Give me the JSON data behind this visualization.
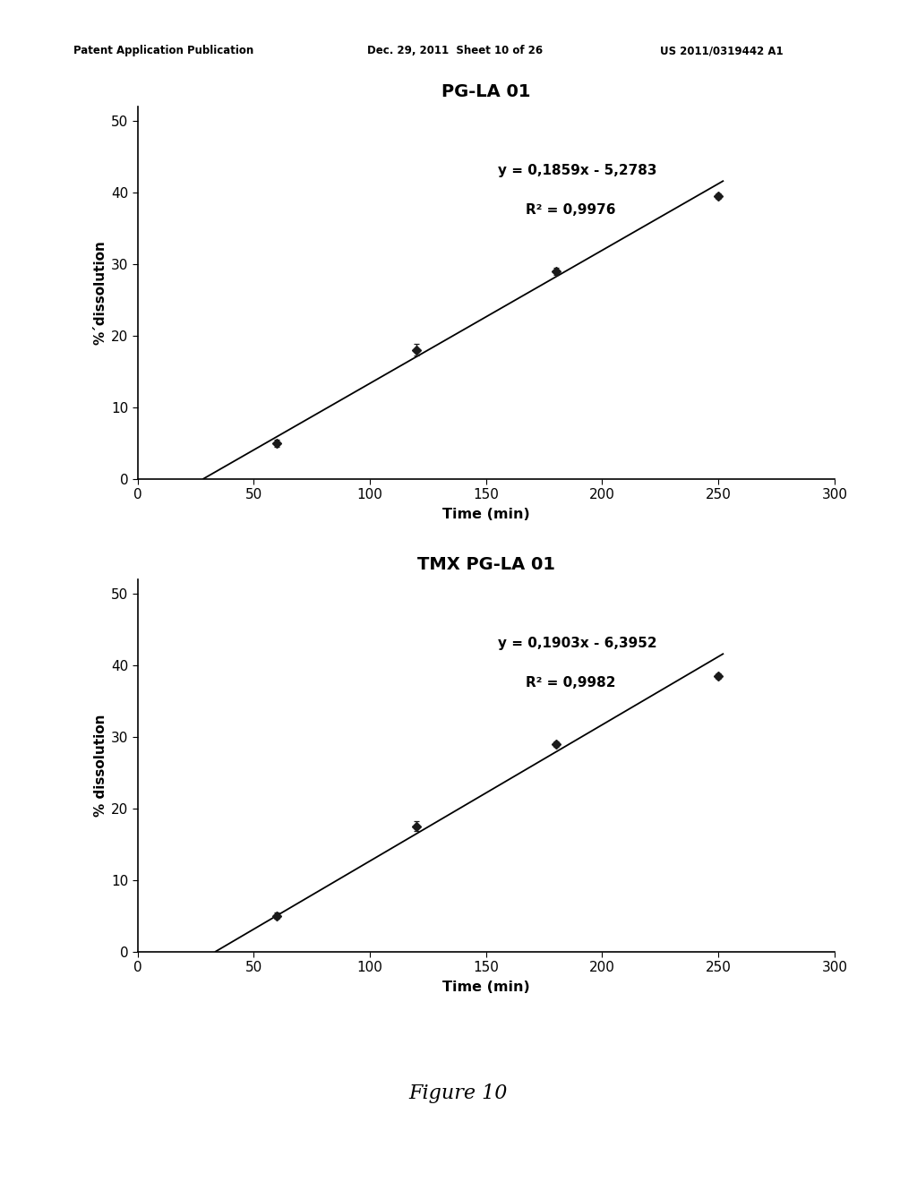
{
  "chart1": {
    "title": "PG-LA 01",
    "equation": "y = 0,1859x - 5,2783",
    "r2": "R² = 0,9976",
    "slope": 0.1859,
    "intercept": -5.2783,
    "data_x": [
      60,
      120,
      180,
      250
    ],
    "data_y": [
      5.0,
      18.0,
      29.0,
      39.5
    ],
    "yerr": [
      0.5,
      0.8,
      0.5,
      0.4
    ],
    "xlabel": "Time (min)",
    "ylabel": "%´dissolution",
    "xlim": [
      0,
      300
    ],
    "ylim": [
      0,
      52
    ],
    "xticks": [
      0,
      50,
      100,
      150,
      200,
      250,
      300
    ],
    "yticks": [
      0,
      10,
      20,
      30,
      40,
      50
    ],
    "eq_x": 155,
    "eq_y": 43,
    "line_xstart": 28.4,
    "line_xend": 252
  },
  "chart2": {
    "title": "TMX PG-LA 01",
    "equation": "y = 0,1903x - 6,3952",
    "r2": "R² = 0,9982",
    "slope": 0.1903,
    "intercept": -6.3952,
    "data_x": [
      60,
      120,
      180,
      250
    ],
    "data_y": [
      5.0,
      17.5,
      29.0,
      38.5
    ],
    "yerr": [
      0.4,
      0.7,
      0.4,
      0.4
    ],
    "xlabel": "Time (min)",
    "ylabel": "% dissolution",
    "xlim": [
      0,
      300
    ],
    "ylim": [
      0,
      52
    ],
    "xticks": [
      0,
      50,
      100,
      150,
      200,
      250,
      300
    ],
    "yticks": [
      0,
      10,
      20,
      30,
      40,
      50
    ],
    "eq_x": 155,
    "eq_y": 43,
    "line_xstart": 33.6,
    "line_xend": 252
  },
  "header_left": "Patent Application Publication",
  "header_mid": "Dec. 29, 2011  Sheet 10 of 26",
  "header_right": "US 2011/0319442 A1",
  "figure_caption": "Figure 10",
  "background_color": "#ffffff",
  "line_color": "#000000",
  "marker_color": "#1a1a1a",
  "font_color": "#000000"
}
